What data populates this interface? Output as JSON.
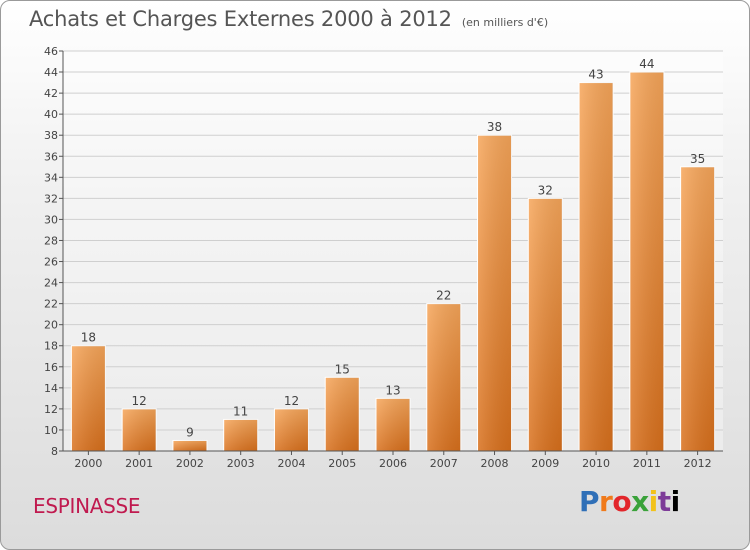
{
  "header": {
    "title": "Achats et Charges Externes 2000 à 2012",
    "subtitle": "(en milliers d'€)"
  },
  "footer": {
    "commune": "ESPINASSE",
    "logo_letters": [
      "P",
      "r",
      "o",
      "x",
      "i",
      "t",
      "i"
    ]
  },
  "chart_data": {
    "type": "bar",
    "title": "Achats et Charges Externes 2000 à 2012",
    "subtitle": "(en milliers d'€)",
    "xlabel": "",
    "ylabel": "",
    "categories": [
      "2000",
      "2001",
      "2002",
      "2003",
      "2004",
      "2005",
      "2006",
      "2007",
      "2008",
      "2009",
      "2010",
      "2011",
      "2012"
    ],
    "values": [
      18,
      12,
      9,
      11,
      12,
      15,
      13,
      22,
      38,
      32,
      43,
      44,
      35
    ],
    "ylim": [
      8,
      46
    ],
    "yticks": [
      8,
      10,
      12,
      14,
      16,
      18,
      20,
      22,
      24,
      26,
      28,
      30,
      32,
      34,
      36,
      38,
      40,
      42,
      44,
      46
    ],
    "grid": true,
    "bar_color": "#f08a2c",
    "data_labels": true
  }
}
